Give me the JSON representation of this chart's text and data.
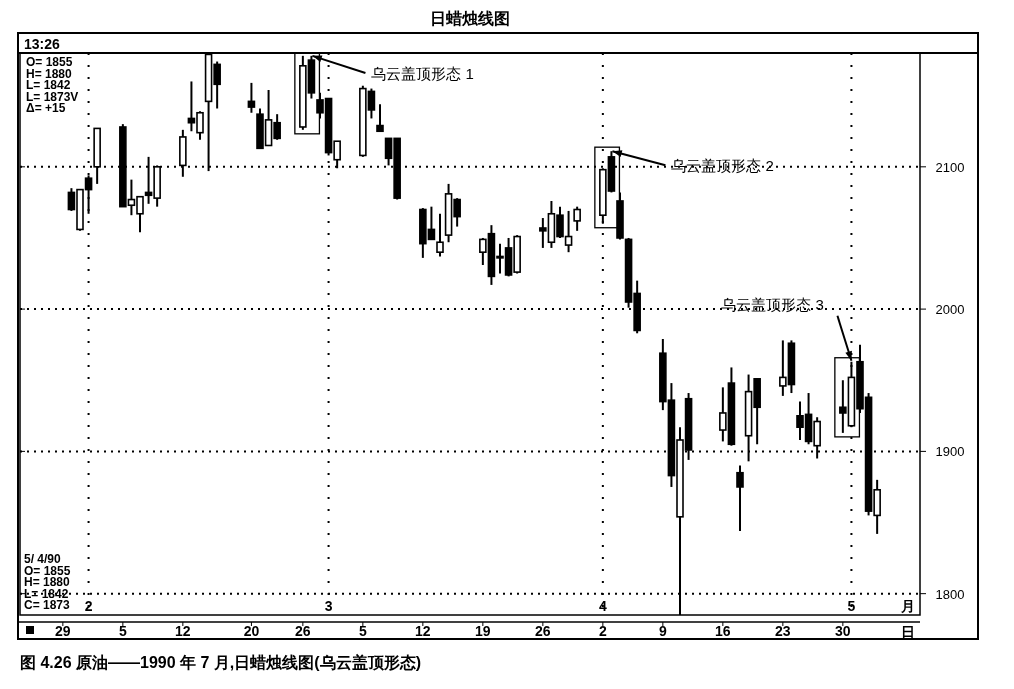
{
  "chart_data": {
    "type": "candlestick",
    "title": "日蜡烛线图",
    "x": [
      "1990-01-30",
      "1990-01-31",
      "1990-02-01",
      "1990-02-02",
      "1990-02-05",
      "1990-02-06",
      "1990-02-07",
      "1990-02-08",
      "1990-02-09",
      "1990-02-12",
      "1990-02-13",
      "1990-02-14",
      "1990-02-15",
      "1990-02-16",
      "1990-02-20",
      "1990-02-21",
      "1990-02-22",
      "1990-02-23",
      "1990-02-26",
      "1990-02-27",
      "1990-02-28",
      "1990-03-01",
      "1990-03-02",
      "1990-03-05",
      "1990-03-06",
      "1990-03-07",
      "1990-03-08",
      "1990-03-09",
      "1990-03-12",
      "1990-03-13",
      "1990-03-14",
      "1990-03-15",
      "1990-03-16",
      "1990-03-19",
      "1990-03-20",
      "1990-03-21",
      "1990-03-22",
      "1990-03-23",
      "1990-03-26",
      "1990-03-27",
      "1990-03-28",
      "1990-03-29",
      "1990-03-30",
      "1990-04-02",
      "1990-04-03",
      "1990-04-04",
      "1990-04-05",
      "1990-04-06",
      "1990-04-09",
      "1990-04-10",
      "1990-04-11",
      "1990-04-12",
      "1990-04-16",
      "1990-04-17",
      "1990-04-18",
      "1990-04-19",
      "1990-04-20",
      "1990-04-23",
      "1990-04-24",
      "1990-04-25",
      "1990-04-26",
      "1990-04-27",
      "1990-04-30",
      "1990-05-01",
      "1990-05-02",
      "1990-05-03",
      "1990-05-04"
    ],
    "ohlc": [
      [
        2082,
        2085,
        2069,
        2070
      ],
      [
        2056,
        2084,
        2055,
        2084
      ],
      [
        2092,
        2094,
        2067,
        2084
      ],
      [
        2100,
        2127,
        2088,
        2127
      ],
      [
        2128,
        2130,
        2072,
        2072
      ],
      [
        2073,
        2091,
        2066,
        2077
      ],
      [
        2067,
        2079,
        2054,
        2079
      ],
      [
        2082,
        2107,
        2074,
        2080
      ],
      [
        2078,
        2101,
        2072,
        2100
      ],
      [
        2101,
        2126,
        2093,
        2121
      ],
      [
        2134,
        2160,
        2125,
        2131
      ],
      [
        2124,
        2139,
        2119,
        2138
      ],
      [
        2146,
        2180,
        2097,
        2179
      ],
      [
        2172,
        2174,
        2141,
        2158
      ],
      [
        2146,
        2159,
        2138,
        2142
      ],
      [
        2137,
        2141,
        2113,
        2113
      ],
      [
        2115,
        2154,
        2115,
        2133
      ],
      [
        2131,
        2137,
        2119,
        2120
      ],
      [
        2128,
        2178,
        2126,
        2171
      ],
      [
        2175,
        2178,
        2148,
        2152
      ],
      [
        2147,
        2152,
        2134,
        2138
      ],
      [
        2148,
        2148,
        2108,
        2110
      ],
      [
        2105,
        2118,
        2099,
        2118
      ],
      [
        2108,
        2157,
        2107,
        2155
      ],
      [
        2153,
        2155,
        2134,
        2140
      ],
      [
        2129,
        2144,
        2125,
        2125
      ],
      [
        2120,
        2120,
        2101,
        2106
      ],
      [
        2120,
        2120,
        2077,
        2078
      ],
      [
        2070,
        2071,
        2036,
        2046
      ],
      [
        2056,
        2072,
        2049,
        2049
      ],
      [
        2040,
        2067,
        2037,
        2047
      ],
      [
        2052,
        2088,
        2047,
        2081
      ],
      [
        2077,
        2078,
        2058,
        2065
      ],
      [
        2040,
        2050,
        2031,
        2049
      ],
      [
        2053,
        2059,
        2017,
        2023
      ],
      [
        2037,
        2046,
        2025,
        2036
      ],
      [
        2043,
        2050,
        2023,
        2024
      ],
      [
        2026,
        2052,
        2025,
        2051
      ],
      [
        2057,
        2064,
        2043,
        2055
      ],
      [
        2047,
        2076,
        2043,
        2067
      ],
      [
        2066,
        2072,
        2050,
        2051
      ],
      [
        2045,
        2069,
        2040,
        2051
      ],
      [
        2062,
        2072,
        2055,
        2070
      ],
      [
        2066,
        2099,
        2060,
        2098
      ],
      [
        2107,
        2111,
        2082,
        2083
      ],
      [
        2076,
        2082,
        2049,
        2050
      ],
      [
        2049,
        2050,
        2001,
        2005
      ],
      [
        2011,
        2020,
        1983,
        1985
      ],
      [
        1969,
        1979,
        1929,
        1935
      ],
      [
        1936,
        1948,
        1875,
        1883
      ],
      [
        1854,
        1917,
        1785,
        1908
      ],
      [
        1937,
        1941,
        1894,
        1901
      ],
      [
        1915,
        1945,
        1907,
        1927
      ],
      [
        1948,
        1959,
        1904,
        1905
      ],
      [
        1885,
        1890,
        1844,
        1875
      ],
      [
        1911,
        1954,
        1893,
        1942
      ],
      [
        1951,
        1951,
        1905,
        1931
      ],
      [
        1946,
        1978,
        1939,
        1952
      ],
      [
        1976,
        1978,
        1941,
        1947
      ],
      [
        1925,
        1935,
        1908,
        1917
      ],
      [
        1926,
        1941,
        1905,
        1907
      ],
      [
        1904,
        1924,
        1895,
        1921
      ],
      [
        1931,
        1950,
        1913,
        1927
      ],
      [
        1918,
        1963,
        1917,
        1952
      ],
      [
        1963,
        1975,
        1927,
        1930
      ],
      [
        1938,
        1941,
        1855,
        1858
      ],
      [
        1855,
        1880,
        1842,
        1873
      ]
    ],
    "xlim": [
      "1990-01-24",
      "1990-05-09"
    ],
    "xticks": [
      {
        "value": "1990-01-29",
        "label": "29"
      },
      {
        "value": "1990-02-05",
        "label": "5"
      },
      {
        "value": "1990-02-12",
        "label": "12"
      },
      {
        "value": "1990-02-20",
        "label": "20"
      },
      {
        "value": "1990-02-26",
        "label": "26"
      },
      {
        "value": "1990-03-05",
        "label": "5"
      },
      {
        "value": "1990-03-12",
        "label": "12"
      },
      {
        "value": "1990-03-19",
        "label": "19"
      },
      {
        "value": "1990-03-26",
        "label": "26"
      },
      {
        "value": "1990-04-02",
        "label": "2"
      },
      {
        "value": "1990-04-09",
        "label": "9"
      },
      {
        "value": "1990-04-16",
        "label": "16"
      },
      {
        "value": "1990-04-23",
        "label": "23"
      },
      {
        "value": "1990-04-30",
        "label": "30"
      }
    ],
    "xlabel": "日",
    "x2lim": [
      "1990-01-24",
      "1990-05-09"
    ],
    "x2ticks": [
      {
        "value": "1990-02-01",
        "label": "2"
      },
      {
        "value": "1990-03-01",
        "label": "3"
      },
      {
        "value": "1990-04-02",
        "label": "4"
      },
      {
        "value": "1990-05-01",
        "label": "5"
      }
    ],
    "x2label": "月",
    "ylim": [
      1785,
      2180
    ],
    "yticks": [
      1800,
      1900,
      2000,
      2100
    ],
    "grid": true,
    "annotations": [
      "13:26",
      "O= 1855\nH= 1880\nL= 1842\nL= 1873V\nΔ=   +15",
      "5/ 4/90\nO= 1855\nH= 1880\nL= 1842\nC= 1873",
      {
        "text": "乌云盖顶形态 1",
        "x": "1990-02-27",
        "y": 2178
      },
      {
        "text": "乌云盖顶形态 2",
        "x": "1990-04-03",
        "y": 2111
      },
      {
        "text": "乌云盖顶形态 3",
        "x": "1990-05-01",
        "y": 1963
      },
      "图 4.26   原油——1990 年 7 月,日蜡烛线图(乌云盖顶形态)"
    ]
  }
}
